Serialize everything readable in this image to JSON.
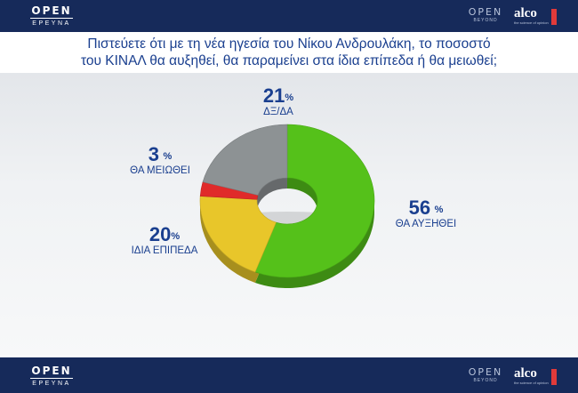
{
  "header": {
    "open_logo_top": "OPEN",
    "open_logo_bottom": "ΕΡΕΥΝΑ",
    "beyond_logo_top": "OPEN",
    "beyond_logo_bottom": "BEYOND",
    "alco_logo": "alco",
    "alco_tagline": "the science of opinion"
  },
  "footer": {
    "open_logo_top": "OPEN",
    "open_logo_bottom": "ΕΡΕΥΝΑ",
    "beyond_logo_top": "OPEN",
    "beyond_logo_bottom": "BEYOND",
    "alco_logo": "alco",
    "alco_tagline": "the science of opinion"
  },
  "colors": {
    "bar": "#162a5a",
    "text": "#1a3f8f",
    "green": "#55c11a",
    "yellow": "#e8c62a",
    "red": "#e02a2a",
    "gray": "#8d9294"
  },
  "chart_data": {
    "type": "pie",
    "style": "3d-donut",
    "title_line1": "Πιστεύετε ότι  με τη νέα ηγεσία του Νίκου Ανδρουλάκη, το ποσοστό",
    "title_line2": "του ΚΙΝΑΛ θα αυξηθεί, θα παραμείνει στα ίδια επίπεδα ή θα μειωθεί;",
    "unit": "%",
    "slices": [
      {
        "label": "ΘΑ ΑΥΞΗΘΕΙ",
        "value": 56,
        "color": "#55c11a"
      },
      {
        "label": "ΙΔΙΑ ΕΠΙΠΕΔΑ",
        "value": 20,
        "color": "#e8c62a"
      },
      {
        "label": "ΘΑ ΜΕΙΩΘΕΙ",
        "value": 3,
        "color": "#e02a2a"
      },
      {
        "label": "ΔΞ/ΔΑ",
        "value": 21,
        "color": "#8d9294"
      }
    ]
  }
}
